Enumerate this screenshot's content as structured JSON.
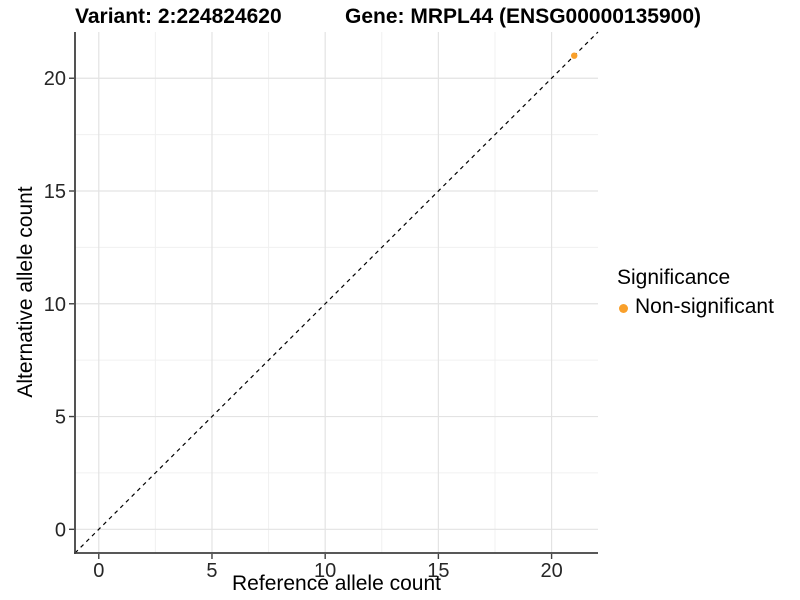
{
  "titles": {
    "variant": "Variant: 2:224824620",
    "gene": "Gene: MRPL44 (ENSG00000135900)"
  },
  "chart_data": {
    "type": "scatter",
    "title_left": "Variant: 2:224824620",
    "title_right": "Gene: MRPL44 (ENSG00000135900)",
    "xlabel": "Reference allele count",
    "ylabel": "Alternative allele count",
    "xlim": [
      -1.05,
      22.05
    ],
    "ylim": [
      -1.05,
      22.05
    ],
    "x_ticks": [
      0,
      5,
      10,
      15,
      20
    ],
    "y_ticks": [
      0,
      5,
      10,
      15,
      20
    ],
    "x_minor_ticks": [
      2.5,
      7.5,
      12.5,
      17.5
    ],
    "y_minor_ticks": [
      2.5,
      7.5,
      12.5,
      17.5
    ],
    "grid": true,
    "reference_line": {
      "type": "abline",
      "slope": 1,
      "intercept": 0,
      "style": "dashed",
      "color": "#000000"
    },
    "series": [
      {
        "name": "Non-significant",
        "color": "#F9A02B",
        "points": [
          {
            "x": 21,
            "y": 21
          }
        ]
      }
    ],
    "legend": {
      "title": "Significance",
      "position": "right",
      "items": [
        {
          "label": "Non-significant",
          "color": "#F9A02B"
        }
      ]
    },
    "colors": {
      "background": "#ffffff",
      "axis_line": "#404040",
      "grid_major": "#e3e3e3",
      "grid_minor": "#f0f0f0",
      "point": "#F9A02B"
    }
  }
}
